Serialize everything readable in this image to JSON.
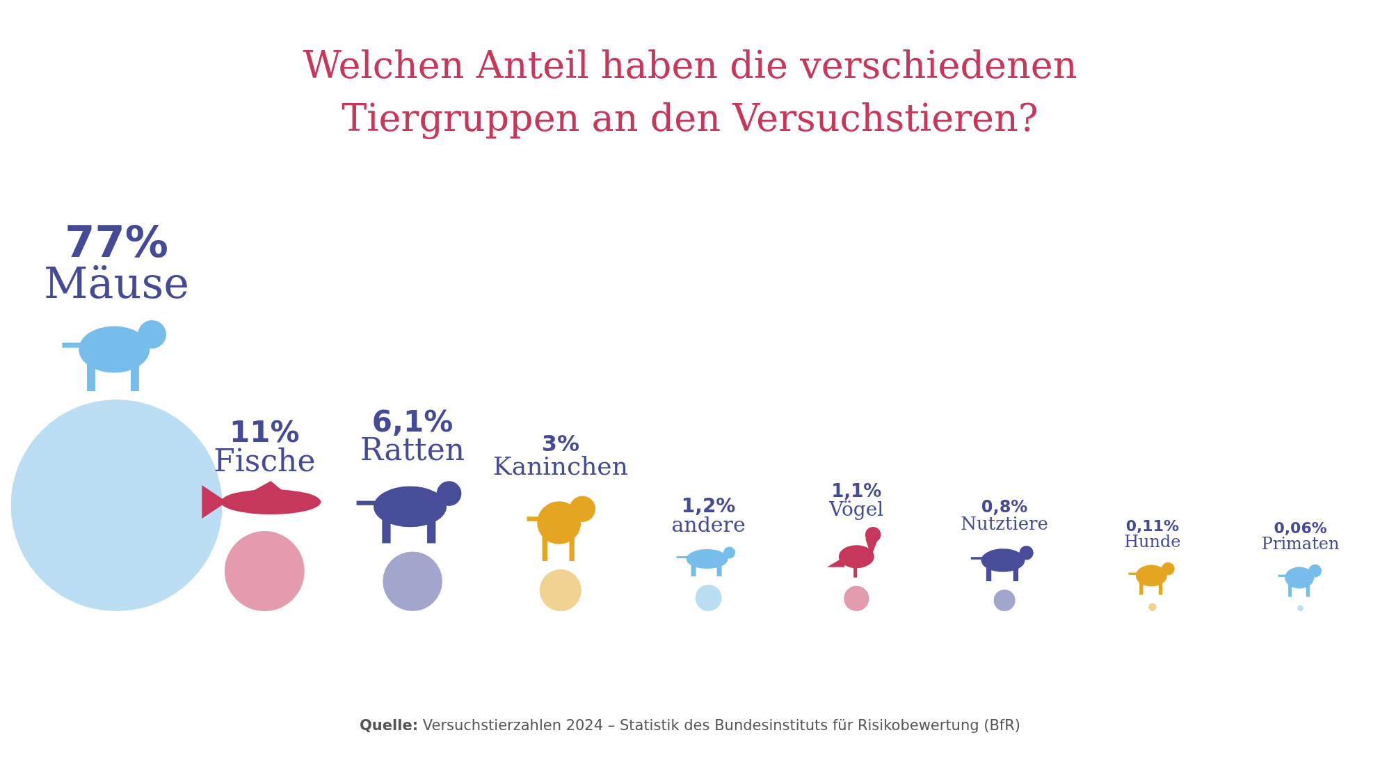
{
  "chart_data": {
    "type": "other",
    "title": "Welchen Anteil haben die verschiedenen Tiergruppen an den Versuchstieren?",
    "categories": [
      "Mäuse",
      "Fische",
      "Ratten",
      "Kaninchen",
      "andere",
      "Vögel",
      "Nutztiere",
      "Hunde",
      "Primaten"
    ],
    "values": [
      77,
      11,
      6.1,
      3,
      1.2,
      1.1,
      0.8,
      0.11,
      0.06
    ],
    "value_labels": [
      "77%",
      "11%",
      "6,1%",
      "3%",
      "1,2%",
      "1,1%",
      "0,8%",
      "0,11%",
      "0,06%"
    ],
    "colors": [
      "#bbdef5",
      "#e39bad",
      "#a3a6cc",
      "#f2d290",
      "#bbdef5",
      "#e39bad",
      "#a3a6cc",
      "#f2d290",
      "#bbdef5"
    ],
    "annotations": [
      "Quelle: Versuchstierzahlen 2024 – Statistik des Bundesinstituts für Risikobewertung (BfR)"
    ]
  }
}
